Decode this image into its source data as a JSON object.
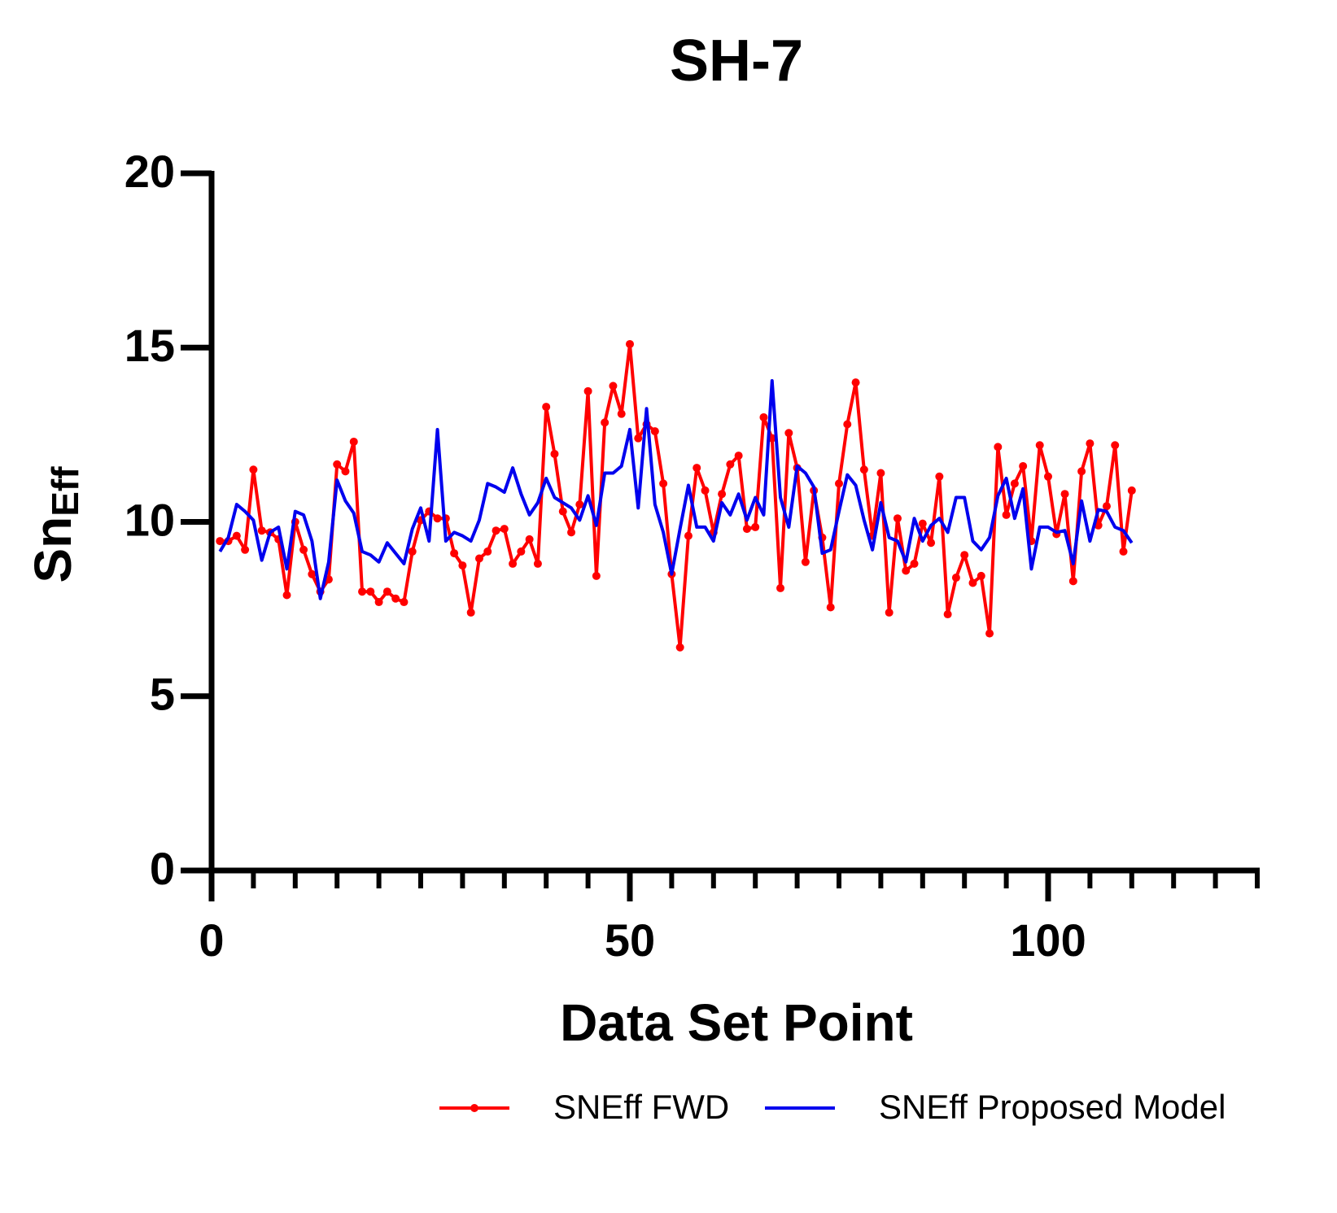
{
  "chart_data": {
    "type": "line",
    "title": "SH-7",
    "xlabel": "Data Set Point",
    "ylabel": [
      "Sn",
      "Eff"
    ],
    "xlim": [
      0,
      125
    ],
    "xticks": [
      0,
      50,
      100
    ],
    "xminorticks": [
      5,
      10,
      15,
      20,
      25,
      30,
      35,
      40,
      45,
      55,
      60,
      65,
      70,
      75,
      80,
      85,
      90,
      95,
      105,
      110,
      115,
      120,
      125
    ],
    "ylim": [
      0,
      20
    ],
    "yticks": [
      0,
      5,
      10,
      15,
      20
    ],
    "legend": "bottom",
    "x": [
      1,
      2,
      3,
      4,
      5,
      6,
      7,
      8,
      9,
      10,
      11,
      12,
      13,
      14,
      15,
      16,
      17,
      18,
      19,
      20,
      21,
      22,
      23,
      24,
      25,
      26,
      27,
      28,
      29,
      30,
      31,
      32,
      33,
      34,
      35,
      36,
      37,
      38,
      39,
      40,
      41,
      42,
      43,
      44,
      45,
      46,
      47,
      48,
      49,
      50,
      51,
      52,
      53,
      54,
      55,
      56,
      57,
      58,
      59,
      60,
      61,
      62,
      63,
      64,
      65,
      66,
      67,
      68,
      69,
      70,
      71,
      72,
      73,
      74,
      75,
      76,
      77,
      78,
      79,
      80,
      81,
      82,
      83,
      84,
      85,
      86,
      87,
      88,
      89,
      90,
      91,
      92,
      93,
      94,
      95,
      96,
      97,
      98,
      99,
      100,
      101,
      102,
      103,
      104,
      105,
      106,
      107,
      108,
      109,
      110
    ],
    "series": [
      {
        "name": "SNEff FWD",
        "color": "#ff0000",
        "markers": true,
        "values": [
          9.45,
          9.45,
          9.6,
          9.2,
          11.5,
          9.75,
          9.7,
          9.5,
          7.9,
          10.0,
          9.2,
          8.5,
          8.0,
          8.35,
          11.65,
          11.45,
          12.3,
          8.0,
          8.0,
          7.7,
          8.0,
          7.8,
          7.7,
          9.15,
          10.05,
          10.3,
          10.1,
          10.1,
          9.1,
          8.75,
          7.4,
          8.95,
          9.15,
          9.75,
          9.8,
          8.8,
          9.15,
          9.5,
          8.8,
          13.3,
          11.95,
          10.3,
          9.7,
          10.5,
          13.75,
          8.45,
          12.85,
          13.9,
          13.1,
          15.1,
          12.4,
          12.8,
          12.6,
          11.1,
          8.5,
          6.4,
          9.6,
          11.55,
          10.9,
          9.7,
          10.8,
          11.65,
          11.9,
          9.8,
          9.85,
          13.0,
          12.4,
          8.1,
          12.55,
          11.55,
          8.85,
          10.9,
          9.55,
          7.55,
          11.1,
          12.8,
          14.0,
          11.5,
          9.6,
          11.4,
          7.4,
          10.1,
          8.6,
          8.8,
          9.95,
          9.4,
          11.3,
          7.35,
          8.4,
          9.05,
          8.25,
          8.45,
          6.8,
          12.15,
          10.2,
          11.1,
          11.6,
          9.45,
          12.2,
          11.3,
          9.65,
          10.8,
          8.3,
          11.45,
          12.25,
          9.9,
          10.45,
          12.2,
          9.15,
          10.9
        ]
      },
      {
        "name": "SNEff Proposed Model",
        "color": "#0000ee",
        "markers": false,
        "values": [
          9.15,
          9.55,
          10.5,
          10.3,
          10.05,
          8.9,
          9.7,
          9.85,
          8.65,
          10.3,
          10.2,
          9.45,
          7.8,
          8.85,
          11.2,
          10.6,
          10.25,
          9.15,
          9.05,
          8.85,
          9.4,
          9.1,
          8.8,
          9.8,
          10.4,
          9.45,
          12.65,
          9.45,
          9.7,
          9.6,
          9.45,
          10.05,
          11.1,
          11.0,
          10.85,
          11.55,
          10.8,
          10.2,
          10.55,
          11.25,
          10.7,
          10.55,
          10.4,
          10.05,
          10.75,
          9.9,
          11.4,
          11.4,
          11.6,
          12.65,
          10.4,
          13.25,
          10.5,
          9.7,
          8.5,
          9.8,
          11.05,
          9.85,
          9.85,
          9.45,
          10.55,
          10.2,
          10.8,
          10.05,
          10.7,
          10.2,
          14.05,
          10.7,
          9.85,
          11.6,
          11.4,
          11.0,
          9.1,
          9.2,
          10.3,
          11.35,
          11.05,
          10.05,
          9.2,
          10.55,
          9.55,
          9.45,
          8.85,
          10.1,
          9.45,
          9.9,
          10.1,
          9.7,
          10.7,
          10.7,
          9.45,
          9.2,
          9.55,
          10.75,
          11.25,
          10.1,
          10.95,
          8.65,
          9.85,
          9.85,
          9.7,
          9.75,
          8.8,
          10.6,
          9.45,
          10.35,
          10.3,
          9.85,
          9.75,
          9.4
        ]
      }
    ]
  }
}
